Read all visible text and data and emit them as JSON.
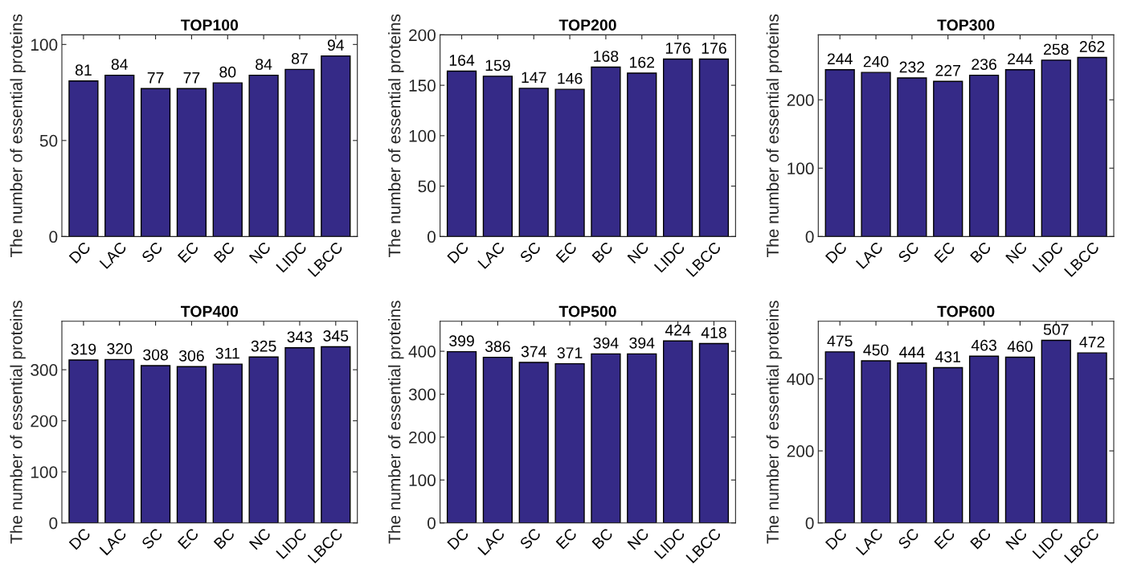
{
  "chart_data": [
    {
      "type": "bar",
      "title": "TOP100",
      "ylabel": "The number of essential proteins",
      "categories": [
        "DC",
        "LAC",
        "SC",
        "EC",
        "BC",
        "NC",
        "LIDC",
        "LBCC"
      ],
      "values": [
        81,
        84,
        77,
        77,
        80,
        84,
        87,
        94
      ],
      "color": "#352a87",
      "ylim": [
        0,
        105
      ],
      "yticks": [
        0,
        50,
        100
      ],
      "data_labels": true
    },
    {
      "type": "bar",
      "title": "TOP200",
      "ylabel": "The number of essential proteins",
      "categories": [
        "DC",
        "LAC",
        "SC",
        "EC",
        "BC",
        "NC",
        "LIDC",
        "LBCC"
      ],
      "values": [
        164,
        159,
        147,
        146,
        168,
        162,
        176,
        176
      ],
      "color": "#352a87",
      "ylim": [
        0,
        200
      ],
      "yticks": [
        0,
        50,
        100,
        150,
        200
      ],
      "data_labels": true
    },
    {
      "type": "bar",
      "title": "TOP300",
      "ylabel": "The number of essential proteins",
      "categories": [
        "DC",
        "LAC",
        "SC",
        "EC",
        "BC",
        "NC",
        "LIDC",
        "LBCC"
      ],
      "values": [
        244,
        240,
        232,
        227,
        236,
        244,
        258,
        262
      ],
      "color": "#352a87",
      "ylim": [
        0,
        295
      ],
      "yticks": [
        0,
        100,
        200
      ],
      "data_labels": true
    },
    {
      "type": "bar",
      "title": "TOP400",
      "ylabel": "The number of essential proteins",
      "categories": [
        "DC",
        "LAC",
        "SC",
        "EC",
        "BC",
        "NC",
        "LIDC",
        "LBCC"
      ],
      "values": [
        319,
        320,
        308,
        306,
        311,
        325,
        343,
        345
      ],
      "color": "#352a87",
      "ylim": [
        0,
        395
      ],
      "yticks": [
        0,
        100,
        200,
        300
      ],
      "data_labels": true
    },
    {
      "type": "bar",
      "title": "TOP500",
      "ylabel": "The number of essential proteins",
      "categories": [
        "DC",
        "LAC",
        "SC",
        "EC",
        "BC",
        "NC",
        "LIDC",
        "LBCC"
      ],
      "values": [
        399,
        386,
        374,
        371,
        394,
        394,
        424,
        418
      ],
      "color": "#352a87",
      "ylim": [
        0,
        470
      ],
      "yticks": [
        0,
        100,
        200,
        300,
        400
      ],
      "data_labels": true
    },
    {
      "type": "bar",
      "title": "TOP600",
      "ylabel": "The number of essential proteins",
      "categories": [
        "DC",
        "LAC",
        "SC",
        "EC",
        "BC",
        "NC",
        "LIDC",
        "LBCC"
      ],
      "values": [
        475,
        450,
        444,
        431,
        463,
        460,
        507,
        472
      ],
      "color": "#352a87",
      "ylim": [
        0,
        560
      ],
      "yticks": [
        0,
        200,
        400
      ],
      "data_labels": true
    }
  ]
}
